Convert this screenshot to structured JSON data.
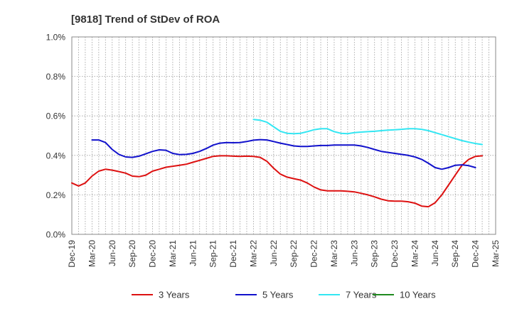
{
  "chart_data": {
    "type": "line",
    "title": "[9818]  Trend of StDev of ROA",
    "xlabel": "",
    "ylabel": "",
    "ylim": [
      0,
      1.0
    ],
    "y_ticks": [
      0,
      0.2,
      0.4,
      0.6,
      0.8,
      1.0
    ],
    "y_tick_labels": [
      "0.0%",
      "0.2%",
      "0.4%",
      "0.6%",
      "0.8%",
      "1.0%"
    ],
    "x_tick_labels": [
      "Dec-19",
      "Mar-20",
      "Jun-20",
      "Sep-20",
      "Dec-20",
      "Mar-21",
      "Jun-21",
      "Sep-21",
      "Dec-21",
      "Mar-22",
      "Jun-22",
      "Sep-22",
      "Dec-22",
      "Mar-23",
      "Jun-23",
      "Sep-23",
      "Dec-23",
      "Mar-24",
      "Jun-24",
      "Sep-24",
      "Dec-24",
      "Mar-25"
    ],
    "x_months": [
      "Dec-19",
      "Jan-20",
      "Feb-20",
      "Mar-20",
      "Apr-20",
      "May-20",
      "Jun-20",
      "Jul-20",
      "Aug-20",
      "Sep-20",
      "Oct-20",
      "Nov-20",
      "Dec-20",
      "Jan-21",
      "Feb-21",
      "Mar-21",
      "Apr-21",
      "May-21",
      "Jun-21",
      "Jul-21",
      "Aug-21",
      "Sep-21",
      "Oct-21",
      "Nov-21",
      "Dec-21",
      "Jan-22",
      "Feb-22",
      "Mar-22",
      "Apr-22",
      "May-22",
      "Jun-22",
      "Jul-22",
      "Aug-22",
      "Sep-22",
      "Oct-22",
      "Nov-22",
      "Dec-22",
      "Jan-23",
      "Feb-23",
      "Mar-23",
      "Apr-23",
      "May-23",
      "Jun-23",
      "Jul-23",
      "Aug-23",
      "Sep-23",
      "Oct-23",
      "Nov-23",
      "Dec-23",
      "Jan-24",
      "Feb-24",
      "Mar-24",
      "Apr-24",
      "May-24",
      "Jun-24",
      "Jul-24",
      "Aug-24",
      "Sep-24",
      "Oct-24",
      "Nov-24",
      "Dec-24",
      "Jan-25",
      "Feb-25",
      "Mar-25"
    ],
    "grid": true,
    "legend_position": "bottom",
    "series": [
      {
        "name": "3 Years",
        "color": "#dd1111",
        "start": "Dec-19",
        "values": [
          0.26,
          0.245,
          0.26,
          0.295,
          0.32,
          0.33,
          0.325,
          0.318,
          0.31,
          0.295,
          0.292,
          0.3,
          0.32,
          0.33,
          0.34,
          0.345,
          0.35,
          0.355,
          0.365,
          0.375,
          0.385,
          0.395,
          0.398,
          0.398,
          0.396,
          0.395,
          0.396,
          0.395,
          0.39,
          0.37,
          0.335,
          0.305,
          0.29,
          0.282,
          0.275,
          0.26,
          0.24,
          0.225,
          0.22,
          0.22,
          0.22,
          0.218,
          0.215,
          0.208,
          0.2,
          0.19,
          0.178,
          0.17,
          0.168,
          0.168,
          0.165,
          0.158,
          0.143,
          0.14,
          0.16,
          0.2,
          0.25,
          0.3,
          0.35,
          0.38,
          0.395,
          0.398
        ]
      },
      {
        "name": "5 Years",
        "color": "#1111cc",
        "start": "Mar-20",
        "values": [
          0.478,
          0.478,
          0.465,
          0.43,
          0.405,
          0.392,
          0.39,
          0.396,
          0.408,
          0.42,
          0.428,
          0.426,
          0.41,
          0.404,
          0.405,
          0.41,
          0.42,
          0.435,
          0.452,
          0.462,
          0.465,
          0.464,
          0.465,
          0.47,
          0.477,
          0.48,
          0.478,
          0.47,
          0.462,
          0.455,
          0.448,
          0.445,
          0.445,
          0.448,
          0.45,
          0.45,
          0.452,
          0.452,
          0.452,
          0.452,
          0.448,
          0.44,
          0.43,
          0.42,
          0.415,
          0.41,
          0.405,
          0.4,
          0.392,
          0.38,
          0.36,
          0.338,
          0.33,
          0.338,
          0.35,
          0.352,
          0.348,
          0.338
        ]
      },
      {
        "name": "7 Years",
        "color": "#33e6f2",
        "start": "Mar-22",
        "values": [
          0.582,
          0.578,
          0.568,
          0.545,
          0.522,
          0.512,
          0.51,
          0.512,
          0.52,
          0.53,
          0.535,
          0.535,
          0.52,
          0.512,
          0.51,
          0.515,
          0.518,
          0.52,
          0.522,
          0.525,
          0.528,
          0.53,
          0.532,
          0.535,
          0.535,
          0.532,
          0.525,
          0.515,
          0.505,
          0.495,
          0.485,
          0.475,
          0.467,
          0.46,
          0.455
        ]
      },
      {
        "name": "10 Years",
        "color": "#1f8a1f",
        "start": "Dec-24",
        "values": []
      }
    ]
  }
}
